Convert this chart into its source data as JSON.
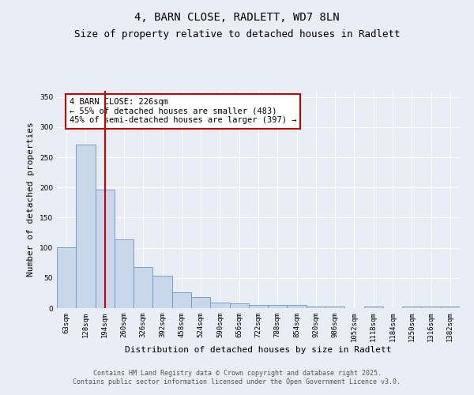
{
  "title1": "4, BARN CLOSE, RADLETT, WD7 8LN",
  "title2": "Size of property relative to detached houses in Radlett",
  "xlabel": "Distribution of detached houses by size in Radlett",
  "ylabel": "Number of detached properties",
  "categories": [
    "63sqm",
    "128sqm",
    "194sqm",
    "260sqm",
    "326sqm",
    "392sqm",
    "458sqm",
    "524sqm",
    "590sqm",
    "656sqm",
    "722sqm",
    "788sqm",
    "854sqm",
    "920sqm",
    "986sqm",
    "1052sqm",
    "1118sqm",
    "1184sqm",
    "1250sqm",
    "1316sqm",
    "1382sqm"
  ],
  "values": [
    101,
    271,
    197,
    114,
    68,
    54,
    26,
    18,
    9,
    8,
    5,
    5,
    5,
    2,
    2,
    0,
    3,
    0,
    3,
    2,
    2
  ],
  "bar_color": "#c8d8ea",
  "bar_edge_color": "#6699bb",
  "red_line_index": 2,
  "red_line_color": "#cc0000",
  "annotation_text": "4 BARN CLOSE: 226sqm\n← 55% of detached houses are smaller (483)\n45% of semi-detached houses are larger (397) →",
  "annotation_box_color": "#ffffff",
  "annotation_box_edge": "#cc0000",
  "ylim": [
    0,
    360
  ],
  "yticks": [
    0,
    50,
    100,
    150,
    200,
    250,
    300,
    350
  ],
  "background_color": "#e8eef4",
  "plot_bg_color": "#e8eef4",
  "grid_color": "#ffffff",
  "footer": "Contains HM Land Registry data © Crown copyright and database right 2025.\nContains public sector information licensed under the Open Government Licence v3.0.",
  "title_fontsize": 10,
  "subtitle_fontsize": 9,
  "tick_fontsize": 6.5,
  "label_fontsize": 8,
  "annotation_fontsize": 7.5,
  "footer_fontsize": 6
}
